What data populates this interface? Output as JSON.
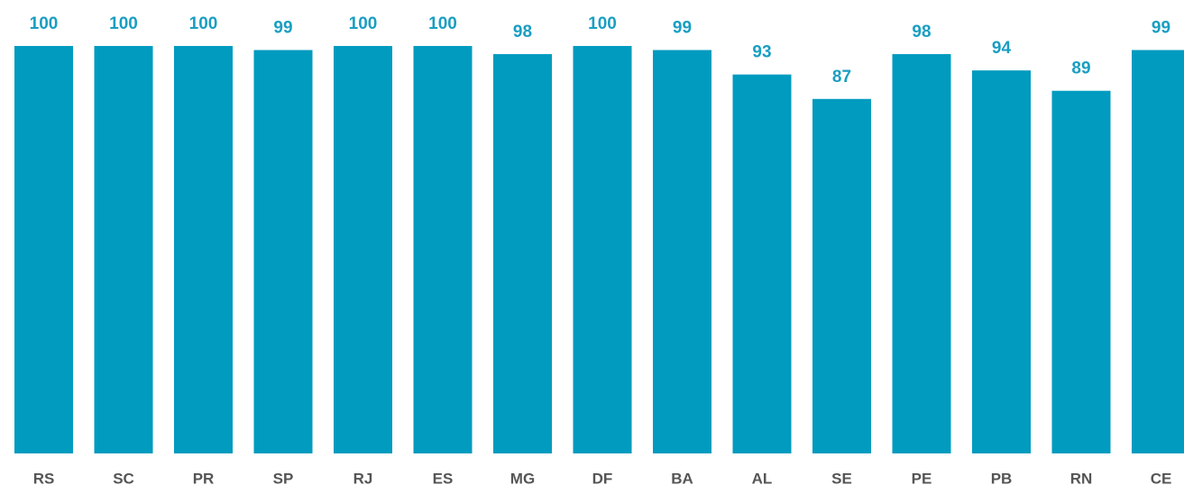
{
  "chart_data": {
    "type": "bar",
    "categories": [
      "RS",
      "SC",
      "PR",
      "SP",
      "RJ",
      "ES",
      "MG",
      "DF",
      "BA",
      "AL",
      "SE",
      "PE",
      "PB",
      "RN",
      "CE"
    ],
    "values": [
      100,
      100,
      100,
      99,
      100,
      100,
      98,
      100,
      99,
      93,
      87,
      98,
      94,
      89,
      99
    ],
    "color": "#009bbf",
    "ylim": [
      0,
      100
    ]
  }
}
